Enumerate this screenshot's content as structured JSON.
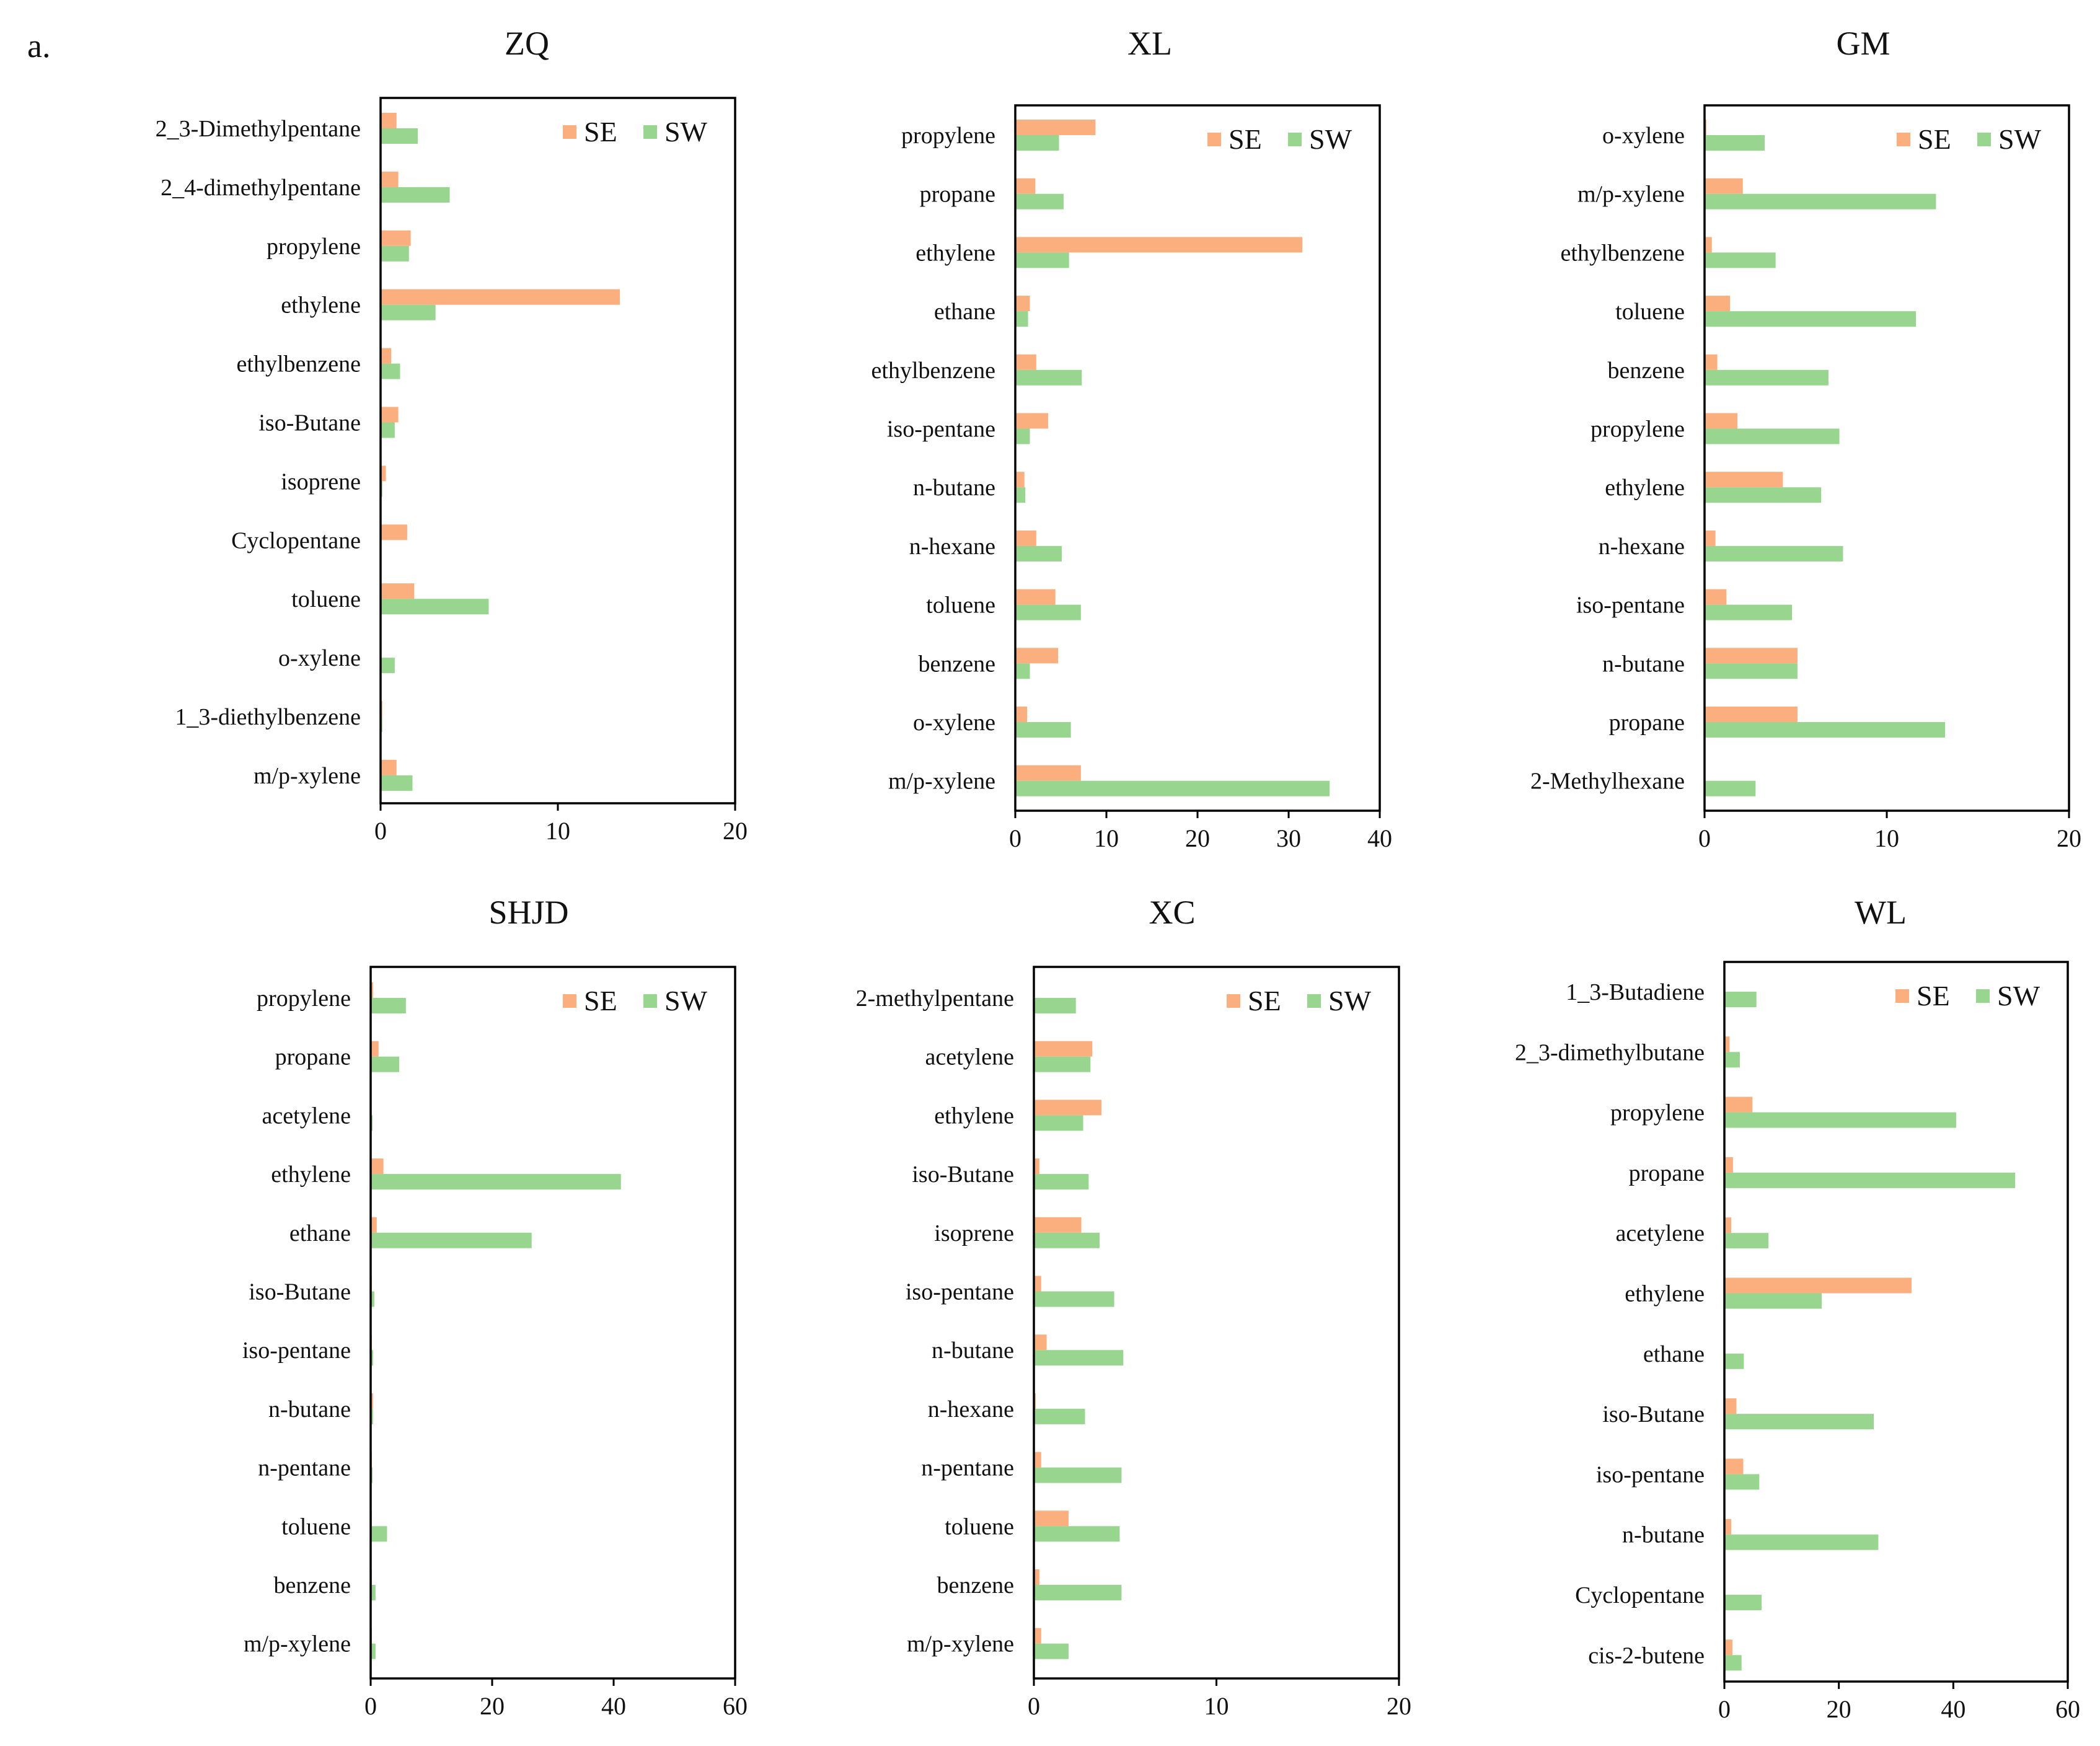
{
  "figure_label": "a.",
  "colors": {
    "SE": "#FBAE7E",
    "SW": "#98D68F"
  },
  "chart_data": [
    {
      "type": "bar",
      "orientation": "horizontal",
      "title": "ZQ",
      "categories": [
        "2_3-Dimethylpentane",
        "2_4-dimethylpentane",
        "propylene",
        "ethylene",
        "ethylbenzene",
        "iso-Butane",
        "isoprene",
        "Cyclopentane",
        "toluene",
        "o-xylene",
        "1_3-diethylbenzene",
        "m/p-xylene"
      ],
      "series": [
        {
          "name": "SE",
          "values": [
            0.9,
            1.0,
            1.7,
            13.5,
            0.6,
            1.0,
            0.3,
            1.5,
            1.9,
            0.0,
            0.1,
            0.9
          ]
        },
        {
          "name": "SW",
          "values": [
            2.1,
            3.9,
            1.6,
            3.1,
            1.1,
            0.8,
            0.1,
            0.0,
            6.1,
            0.8,
            0.1,
            1.8
          ]
        }
      ],
      "xlim": [
        0,
        20
      ],
      "xticks": [
        "0",
        "10",
        "20"
      ],
      "legend": "top-right"
    },
    {
      "type": "bar",
      "orientation": "horizontal",
      "title": "XL",
      "categories": [
        "propylene",
        "propane",
        "ethylene",
        "ethane",
        "ethylbenzene",
        "iso-pentane",
        "n-butane",
        "n-hexane",
        "toluene",
        "benzene",
        "o-xylene",
        "m/p-xylene"
      ],
      "series": [
        {
          "name": "SE",
          "values": [
            8.8,
            2.2,
            31.5,
            1.6,
            2.3,
            3.6,
            1.0,
            2.3,
            4.4,
            4.7,
            1.3,
            7.2
          ]
        },
        {
          "name": "SW",
          "values": [
            4.8,
            5.3,
            5.9,
            1.4,
            7.3,
            1.6,
            1.1,
            5.1,
            7.2,
            1.6,
            6.1,
            34.5
          ]
        }
      ],
      "xlim": [
        0,
        40
      ],
      "xticks": [
        "0",
        "10",
        "20",
        "30",
        "40"
      ],
      "legend": "top-right"
    },
    {
      "type": "bar",
      "orientation": "horizontal",
      "title": "GM",
      "categories": [
        "o-xylene",
        "m/p-xylene",
        "ethylbenzene",
        "toluene",
        "benzene",
        "propylene",
        "ethylene",
        "n-hexane",
        "iso-pentane",
        "n-butane",
        "propane",
        "2-Methylhexane"
      ],
      "series": [
        {
          "name": "SE",
          "values": [
            0.1,
            2.1,
            0.4,
            1.4,
            0.7,
            1.8,
            4.3,
            0.6,
            1.2,
            5.1,
            5.1,
            0.0
          ]
        },
        {
          "name": "SW",
          "values": [
            3.3,
            12.7,
            3.9,
            11.6,
            6.8,
            7.4,
            6.4,
            7.6,
            4.8,
            5.1,
            13.2,
            2.8
          ]
        }
      ],
      "xlim": [
        0,
        20
      ],
      "xticks": [
        "0",
        "10",
        "20"
      ],
      "legend": "top-right"
    },
    {
      "type": "bar",
      "orientation": "horizontal",
      "title": "SHJD",
      "categories": [
        "propylene",
        "propane",
        "acetylene",
        "ethylene",
        "ethane",
        "iso-Butane",
        "iso-pentane",
        "n-butane",
        "n-pentane",
        "toluene",
        "benzene",
        "m/p-xylene"
      ],
      "series": [
        {
          "name": "SE",
          "values": [
            0.4,
            1.3,
            0.1,
            2.1,
            1.0,
            0.2,
            0.2,
            0.4,
            0.2,
            0.2,
            0.2,
            0.2
          ]
        },
        {
          "name": "SW",
          "values": [
            5.8,
            4.7,
            0.3,
            41.2,
            26.5,
            0.6,
            0.4,
            0.4,
            0.3,
            2.7,
            0.8,
            0.8
          ]
        }
      ],
      "xlim": [
        0,
        60
      ],
      "xticks": [
        "0",
        "20",
        "40",
        "60"
      ],
      "legend": "top-right"
    },
    {
      "type": "bar",
      "orientation": "horizontal",
      "title": "XC",
      "categories": [
        "2-methylpentane",
        "acetylene",
        "ethylene",
        "iso-Butane",
        "isoprene",
        "iso-pentane",
        "n-butane",
        "n-hexane",
        "n-pentane",
        "toluene",
        "benzene",
        "m/p-xylene"
      ],
      "series": [
        {
          "name": "SE",
          "values": [
            0.0,
            3.2,
            3.7,
            0.3,
            2.6,
            0.4,
            0.7,
            0.1,
            0.4,
            1.9,
            0.3,
            0.4
          ]
        },
        {
          "name": "SW",
          "values": [
            2.3,
            3.1,
            2.7,
            3.0,
            3.6,
            4.4,
            4.9,
            2.8,
            4.8,
            4.7,
            4.8,
            1.9
          ]
        }
      ],
      "xlim": [
        0,
        20
      ],
      "xticks": [
        "0",
        "10",
        "20"
      ],
      "legend": "top-right"
    },
    {
      "type": "bar",
      "orientation": "horizontal",
      "title": "WL",
      "categories": [
        "1_3-Butadiene",
        "2_3-dimethylbutane",
        "propylene",
        "propane",
        "acetylene",
        "ethylene",
        "ethane",
        "iso-Butane",
        "iso-pentane",
        "n-butane",
        "Cyclopentane",
        "cis-2-butene"
      ],
      "series": [
        {
          "name": "SE",
          "values": [
            0.1,
            0.9,
            4.9,
            1.5,
            1.2,
            32.7,
            0.0,
            2.1,
            3.3,
            1.2,
            0.1,
            1.4
          ]
        },
        {
          "name": "SW",
          "values": [
            5.6,
            2.7,
            40.5,
            50.8,
            7.7,
            17.0,
            3.4,
            26.1,
            6.1,
            26.9,
            6.5,
            3.0
          ]
        }
      ],
      "xlim": [
        0,
        60
      ],
      "xticks": [
        "0",
        "20",
        "40",
        "60"
      ],
      "legend": "top-right"
    }
  ]
}
